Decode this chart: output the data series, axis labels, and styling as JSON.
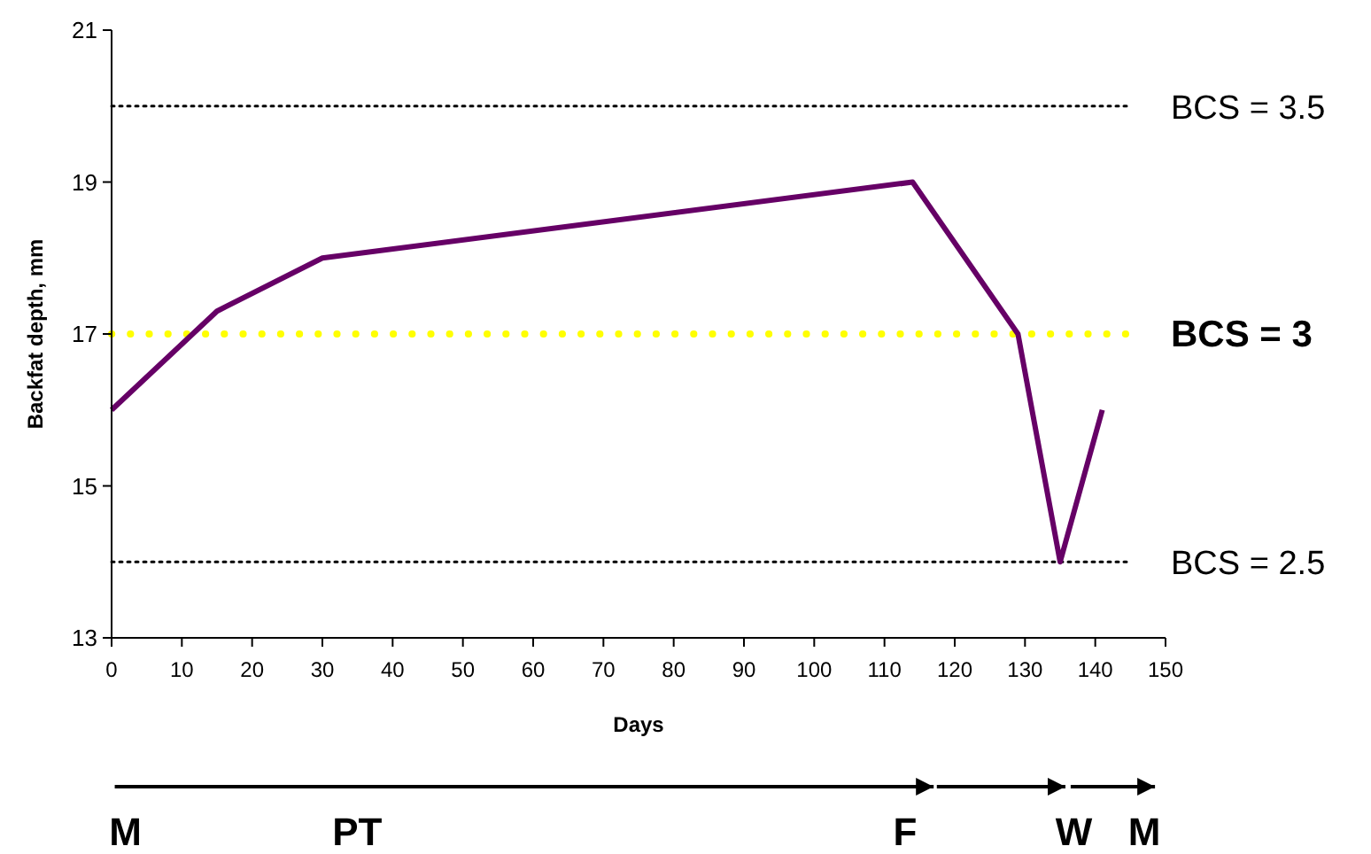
{
  "chart_data": {
    "type": "line",
    "xlabel": "Days",
    "ylabel": "Backfat depth, mm",
    "x": [
      0,
      15,
      30,
      114,
      129,
      135,
      141
    ],
    "series": [
      {
        "color": "#660066",
        "values": [
          16,
          17.3,
          18,
          19,
          17,
          14,
          16
        ]
      }
    ],
    "xlim": [
      0,
      150
    ],
    "xticks": [
      0,
      10,
      20,
      30,
      40,
      50,
      60,
      70,
      80,
      90,
      100,
      110,
      120,
      130,
      140,
      150
    ],
    "ylim": [
      13,
      21
    ],
    "yticks": [
      13,
      15,
      17,
      19,
      21
    ],
    "grid": false,
    "marker": "none",
    "line_style": "solid",
    "ref_lines": [
      {
        "axis": "y",
        "value": 20,
        "color": "#000000",
        "line_style": "dotted"
      },
      {
        "axis": "y",
        "value": 17,
        "color": "#ffff00",
        "line_style": "dotted"
      },
      {
        "axis": "y",
        "value": 14,
        "color": "#000000",
        "line_style": "dotted"
      }
    ],
    "annotations": [
      "BCS = 3.5",
      "BCS = 3",
      "BCS = 2.5",
      "M",
      "PT",
      "F",
      "W",
      "M"
    ]
  }
}
